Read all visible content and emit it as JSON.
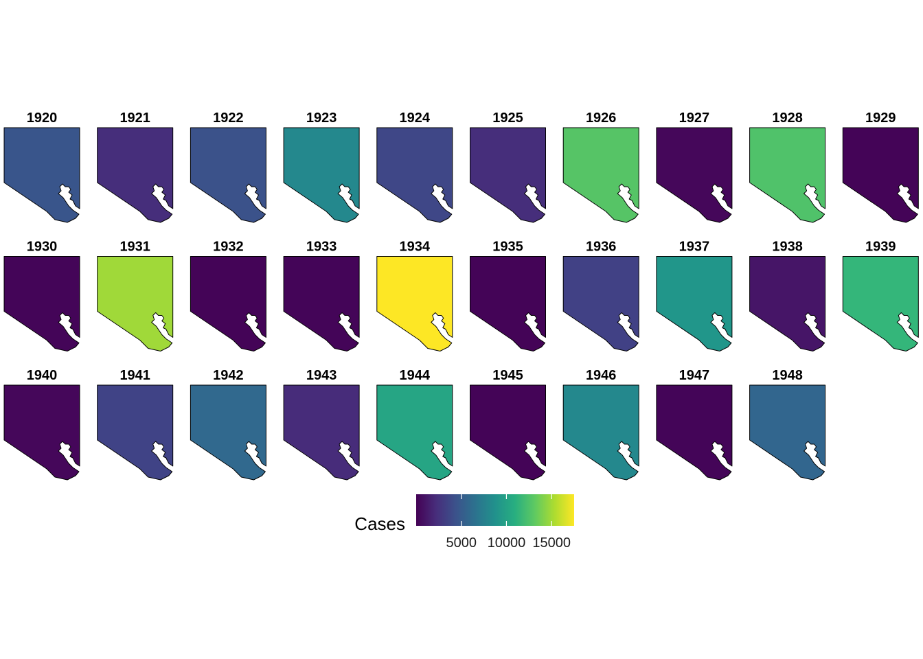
{
  "chart_data": {
    "type": "choropleth-facets",
    "title": "",
    "legend": {
      "title": "Cases",
      "placement": "bottom",
      "range": [
        0,
        17500
      ],
      "ticks": [
        5000,
        10000,
        15000
      ],
      "tick_labels": [
        "5000",
        "10000",
        "15000"
      ],
      "colors": [
        "#440154",
        "#31688e",
        "#35b779",
        "#fde725"
      ]
    },
    "facets": [
      {
        "year": "1920",
        "cases": 4600
      },
      {
        "year": "1921",
        "cases": 2300
      },
      {
        "year": "1922",
        "cases": 4400
      },
      {
        "year": "1923",
        "cases": 8200
      },
      {
        "year": "1924",
        "cases": 3700
      },
      {
        "year": "1925",
        "cases": 2300
      },
      {
        "year": "1926",
        "cases": 12800
      },
      {
        "year": "1927",
        "cases": 300
      },
      {
        "year": "1928",
        "cases": 12600
      },
      {
        "year": "1929",
        "cases": 150
      },
      {
        "year": "1930",
        "cases": 200
      },
      {
        "year": "1931",
        "cases": 15000
      },
      {
        "year": "1932",
        "cases": 150
      },
      {
        "year": "1933",
        "cases": 200
      },
      {
        "year": "1934",
        "cases": 17500
      },
      {
        "year": "1935",
        "cases": 150
      },
      {
        "year": "1936",
        "cases": 3400
      },
      {
        "year": "1937",
        "cases": 9200
      },
      {
        "year": "1938",
        "cases": 1000
      },
      {
        "year": "1939",
        "cases": 11600
      },
      {
        "year": "1940",
        "cases": 300
      },
      {
        "year": "1941",
        "cases": 3500
      },
      {
        "year": "1942",
        "cases": 5900
      },
      {
        "year": "1943",
        "cases": 2200
      },
      {
        "year": "1944",
        "cases": 10300
      },
      {
        "year": "1945",
        "cases": 150
      },
      {
        "year": "1946",
        "cases": 8200
      },
      {
        "year": "1947",
        "cases": 200
      },
      {
        "year": "1948",
        "cases": 5700
      }
    ]
  }
}
